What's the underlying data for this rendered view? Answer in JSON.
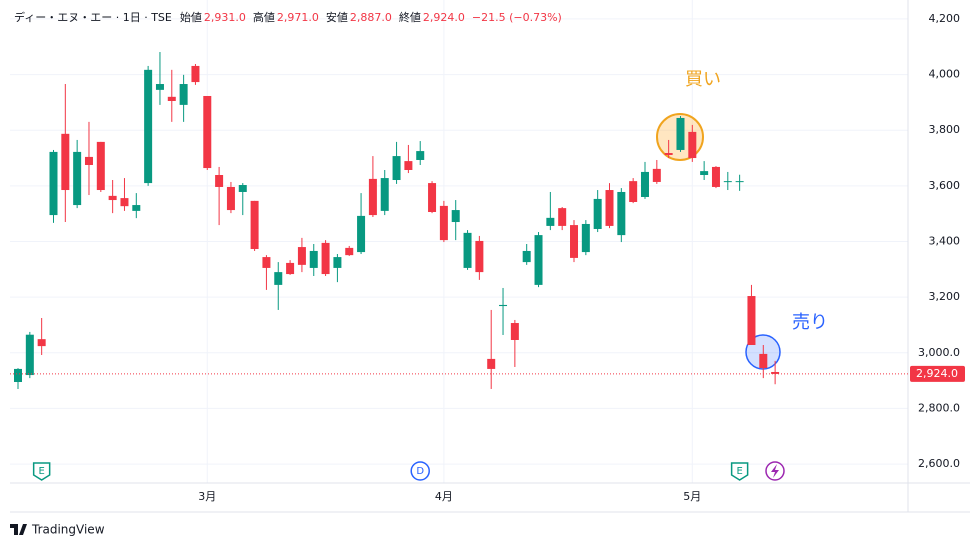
{
  "chart_data": {
    "type": "candlestick",
    "legend": {
      "symbol": "ディー・エヌ・エー · 1日 · TSE",
      "fields": [
        {
          "label": "始値",
          "value": "2,931.0"
        },
        {
          "label": "高値",
          "value": "2,971.0"
        },
        {
          "label": "安値",
          "value": "2,887.0"
        },
        {
          "label": "終値",
          "value": "2,924.0"
        }
      ],
      "change": "−21.5 (−0.73%)"
    },
    "categories": [
      null,
      null,
      null,
      null,
      null,
      null,
      null,
      null,
      null,
      null,
      null,
      null,
      null,
      null,
      null,
      null,
      "3月",
      null,
      null,
      null,
      null,
      null,
      null,
      null,
      null,
      null,
      null,
      null,
      null,
      null,
      null,
      null,
      null,
      null,
      null,
      null,
      "4月",
      null,
      null,
      null,
      null,
      null,
      null,
      null,
      null,
      null,
      null,
      null,
      null,
      null,
      null,
      null,
      null,
      null,
      null,
      null,
      null,
      "5月",
      null,
      null,
      null,
      null,
      null,
      null,
      null
    ],
    "open": [
      2895,
      2920,
      3049,
      3495,
      3787,
      3531,
      3704,
      3758,
      3564,
      3556,
      3510,
      3610,
      3945,
      3920,
      3891,
      4031,
      3923,
      3639,
      3596,
      3578,
      3546,
      3344,
      3244,
      3323,
      3380,
      3305,
      3395,
      3305,
      3377,
      3362,
      3625,
      3510,
      3621,
      3689,
      3693,
      3610,
      3528,
      3470,
      3305,
      3402,
      2978,
      3168,
      3107,
      3326,
      3244,
      3456,
      3520,
      3459,
      3362,
      3445,
      3585,
      3423,
      3617,
      3560,
      3661,
      3718,
      3729,
      3794,
      3639,
      3668,
      3614,
      3614,
      3204,
      2996,
      2931
    ],
    "high": [
      2945,
      3075,
      3125,
      3729,
      3966,
      3765,
      3830,
      3758,
      3621,
      3628,
      3574,
      4031,
      4081,
      4017,
      3999,
      4038,
      3923,
      3668,
      3614,
      3610,
      3546,
      3351,
      3326,
      3333,
      3413,
      3391,
      3405,
      3355,
      3384,
      3574,
      3707,
      3657,
      3758,
      3747,
      3761,
      3617,
      3546,
      3549,
      3441,
      3420,
      3154,
      3233,
      3118,
      3391,
      3434,
      3578,
      3524,
      3477,
      3477,
      3585,
      3610,
      3592,
      3628,
      3686,
      3693,
      3765,
      3851,
      3819,
      3689,
      3671,
      3650,
      3640,
      3244,
      3028,
      2971
    ],
    "low": [
      2870,
      2909,
      2992,
      3467,
      3470,
      3520,
      3567,
      3578,
      3502,
      3510,
      3484,
      3600,
      3891,
      3830,
      3830,
      3963,
      3657,
      3459,
      3502,
      3495,
      3366,
      3226,
      3154,
      3280,
      3290,
      3276,
      3276,
      3254,
      3348,
      3355,
      3488,
      3495,
      3607,
      3646,
      3675,
      3502,
      3398,
      3405,
      3298,
      3262,
      2870,
      3064,
      2949,
      3316,
      3236,
      3441,
      3441,
      3326,
      3351,
      3434,
      3448,
      3398,
      3538,
      3553,
      3607,
      3700,
      3722,
      3686,
      3621,
      3592,
      3585,
      3582,
      3028,
      2909,
      2887
    ],
    "close": [
      2942,
      3065,
      3024,
      3722,
      3585,
      3722,
      3675,
      3585,
      3549,
      3527,
      3531,
      4017,
      3966,
      3905,
      3966,
      3973,
      3664,
      3596,
      3513,
      3603,
      3373,
      3305,
      3290,
      3283,
      3316,
      3366,
      3283,
      3344,
      3351,
      3492,
      3495,
      3628,
      3707,
      3657,
      3725,
      3506,
      3405,
      3513,
      3431,
      3290,
      2942,
      3172,
      3046,
      3366,
      3423,
      3485,
      3456,
      3341,
      3463,
      3553,
      3456,
      3578,
      3542,
      3650,
      3614,
      3711,
      3844,
      3700,
      3653,
      3596,
      3617,
      3617,
      3028,
      2945,
      2924
    ],
    "up_color": "#089981",
    "down_color": "#f23645",
    "last_price_label": "2,924.0",
    "ylim": [
      2532,
      4268
    ],
    "yticks": [
      {
        "value": 4200,
        "label": "4,200"
      },
      {
        "value": 4000,
        "label": "4,000"
      },
      {
        "value": 3800,
        "label": "3,800"
      },
      {
        "value": 3600,
        "label": "3,600"
      },
      {
        "value": 3400,
        "label": "3,400"
      },
      {
        "value": 3200,
        "label": "3,200"
      },
      {
        "value": 3000,
        "label": "3,000.0"
      },
      {
        "value": 2800,
        "label": "2,800.0"
      },
      {
        "value": 2600,
        "label": "2,600.0"
      }
    ],
    "grid": true,
    "events": [
      {
        "label": "E",
        "at": 2,
        "color": "#089981"
      },
      {
        "label": "D",
        "at": 34,
        "color": "#2962ff"
      },
      {
        "label": "E",
        "at": 61,
        "color": "#089981"
      }
    ],
    "annotations": [
      {
        "text": "買い",
        "color": "#f0a41e"
      },
      {
        "text": "売り",
        "color": "#2962ff"
      }
    ],
    "brand": "TradingView"
  }
}
